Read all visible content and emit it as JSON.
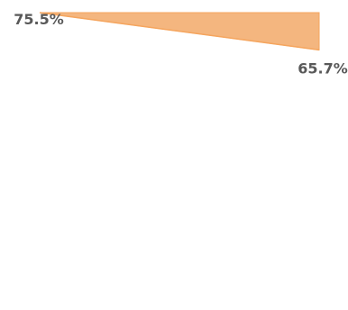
{
  "chart_data": {
    "type": "area",
    "categories": [
      "",
      ""
    ],
    "series": [
      {
        "values": [
          75.5,
          65.7
        ],
        "color": "#F4B67F",
        "stroke_color": "#F5A55E"
      }
    ],
    "data_labels": [
      "75.5%",
      "65.7%"
    ],
    "data_label_color": "#595959",
    "ylim": [
      0,
      75.5
    ],
    "grid": false,
    "legend": "none"
  }
}
